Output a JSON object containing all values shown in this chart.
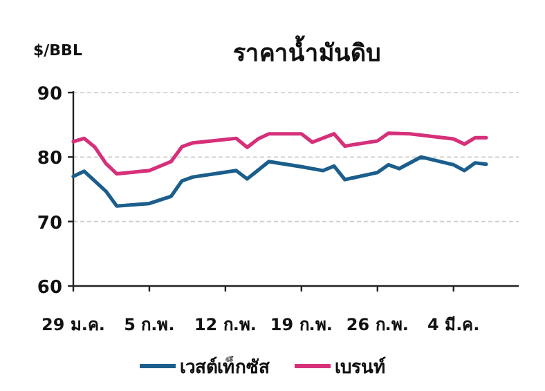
{
  "chart_data": {
    "type": "line",
    "title": "ราคาน้ำมันดิบ",
    "ylabel": "$/BBL",
    "xlim": [
      "--01-29",
      "--03-10"
    ],
    "xticks": [
      {
        "value": "--01-29",
        "label": "29 ม.ค."
      },
      {
        "value": "--02-05",
        "label": "5 ก.พ."
      },
      {
        "value": "--02-12",
        "label": "12 ก.พ."
      },
      {
        "value": "--02-19",
        "label": "19 ก.พ."
      },
      {
        "value": "--02-26",
        "label": "26 ก.พ."
      },
      {
        "value": "--03-04",
        "label": "4 มี.ค."
      }
    ],
    "ylim": [
      60,
      90
    ],
    "yticks": [
      60,
      70,
      80,
      90
    ],
    "grid": "y",
    "legend": "bottom",
    "line_style": "solid",
    "marker": "none",
    "series": [
      {
        "name": "เวสต์เท็กซัส",
        "color": "#1b5e8c",
        "x": [
          "--01-29",
          "--01-30",
          "--02-01",
          "--02-02",
          "--02-05",
          "--02-07",
          "--02-08",
          "--02-09",
          "--02-13",
          "--02-14",
          "--02-16",
          "--02-19",
          "--02-21",
          "--02-22",
          "--02-23",
          "--02-26",
          "--02-27",
          "--02-28",
          "--03-01",
          "--03-04",
          "--03-05",
          "--03-06",
          "--03-07"
        ],
        "values": [
          77.0,
          77.8,
          74.7,
          72.4,
          72.8,
          73.9,
          76.3,
          76.9,
          77.9,
          76.6,
          79.3,
          78.5,
          77.9,
          78.6,
          76.5,
          77.6,
          78.8,
          78.2,
          80.0,
          78.8,
          77.9,
          79.1,
          78.9
        ]
      },
      {
        "name": "เบรนท์",
        "color": "#d6307a",
        "x": [
          "--01-29",
          "--01-30",
          "--01-31",
          "--02-01",
          "--02-02",
          "--02-05",
          "--02-07",
          "--02-08",
          "--02-09",
          "--02-13",
          "--02-14",
          "--02-15",
          "--02-16",
          "--02-19",
          "--02-20",
          "--02-22",
          "--02-23",
          "--02-26",
          "--02-27",
          "--02-29",
          "--03-04",
          "--03-05",
          "--03-06",
          "--03-07"
        ],
        "values": [
          82.4,
          82.9,
          81.5,
          79.0,
          77.4,
          77.9,
          79.3,
          81.6,
          82.2,
          82.9,
          81.5,
          82.8,
          83.6,
          83.6,
          82.3,
          83.6,
          81.7,
          82.5,
          83.7,
          83.6,
          82.8,
          82.0,
          83.0,
          83.0
        ]
      }
    ]
  }
}
